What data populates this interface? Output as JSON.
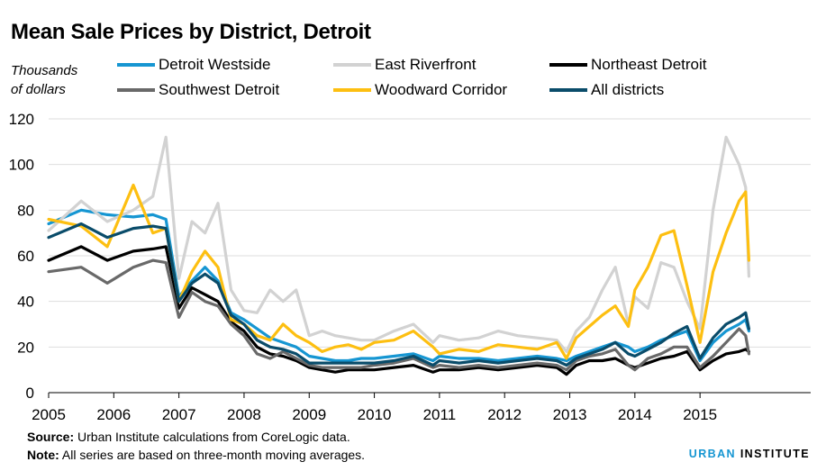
{
  "chart_data": {
    "type": "line",
    "title": "Mean Sale Prices by District, Detroit",
    "ylabel": "Thousands of dollars",
    "xlabel": "",
    "ylim": [
      0,
      120
    ],
    "xlim": [
      2005,
      2015.8
    ],
    "yticks": [
      0,
      20,
      40,
      60,
      80,
      100,
      120
    ],
    "xticks": [
      2005,
      2006,
      2007,
      2008,
      2009,
      2010,
      2011,
      2012,
      2013,
      2014,
      2015
    ],
    "grid": true,
    "legend_position": "top",
    "x": [
      2005.0,
      2005.5,
      2005.9,
      2006.3,
      2006.6,
      2006.8,
      2007.0,
      2007.2,
      2007.4,
      2007.6,
      2007.8,
      2008.0,
      2008.2,
      2008.4,
      2008.6,
      2008.8,
      2009.0,
      2009.2,
      2009.4,
      2009.6,
      2009.8,
      2010.0,
      2010.3,
      2010.6,
      2010.9,
      2011.0,
      2011.3,
      2011.6,
      2011.9,
      2012.2,
      2012.5,
      2012.8,
      2012.95,
      2013.1,
      2013.3,
      2013.5,
      2013.7,
      2013.9,
      2014.0,
      2014.2,
      2014.4,
      2014.6,
      2014.8,
      2015.0,
      2015.2,
      2015.4,
      2015.6,
      2015.7,
      2015.75
    ],
    "series": [
      {
        "name": "Detroit Westside",
        "color": "#1696d2",
        "values": [
          74,
          80,
          78,
          77,
          78,
          76,
          42,
          49,
          55,
          49,
          35,
          32,
          28,
          24,
          22,
          20,
          16,
          15,
          14,
          14,
          15,
          15,
          16,
          17,
          14,
          16,
          15,
          15,
          14,
          15,
          16,
          15,
          14,
          16,
          18,
          20,
          22,
          20,
          18,
          20,
          23,
          25,
          27,
          14,
          22,
          27,
          30,
          32,
          27
        ]
      },
      {
        "name": "East Riverfront",
        "color": "#d2d2d2",
        "values": [
          71,
          84,
          75,
          80,
          86,
          112,
          50,
          75,
          70,
          83,
          45,
          36,
          35,
          45,
          40,
          45,
          25,
          27,
          25,
          24,
          23,
          23,
          27,
          30,
          22,
          25,
          23,
          24,
          27,
          25,
          24,
          23,
          18,
          27,
          33,
          45,
          55,
          30,
          42,
          37,
          57,
          55,
          40,
          28,
          80,
          112,
          100,
          90,
          51
        ]
      },
      {
        "name": "Northeast Detroit",
        "color": "#000000",
        "values": [
          58,
          64,
          58,
          62,
          63,
          64,
          37,
          46,
          43,
          40,
          31,
          27,
          20,
          17,
          16,
          14,
          11,
          10,
          9,
          10,
          10,
          10,
          11,
          12,
          9,
          10,
          10,
          11,
          10,
          11,
          12,
          11,
          8,
          12,
          14,
          14,
          15,
          12,
          11,
          13,
          15,
          16,
          18,
          10,
          14,
          17,
          18,
          19,
          18
        ]
      },
      {
        "name": "Southwest Detroit",
        "color": "#696969",
        "values": [
          53,
          55,
          48,
          55,
          58,
          57,
          33,
          44,
          40,
          38,
          30,
          25,
          17,
          15,
          18,
          15,
          12,
          11,
          11,
          11,
          11,
          12,
          13,
          15,
          11,
          12,
          11,
          12,
          11,
          12,
          13,
          12,
          10,
          14,
          16,
          17,
          19,
          12,
          10,
          15,
          17,
          20,
          20,
          11,
          16,
          22,
          28,
          25,
          17
        ]
      },
      {
        "name": "Woodward Corridor",
        "color": "#fdbf11",
        "values": [
          76,
          73,
          64,
          91,
          70,
          72,
          40,
          53,
          62,
          55,
          32,
          30,
          25,
          23,
          30,
          25,
          22,
          18,
          20,
          21,
          19,
          22,
          23,
          27,
          20,
          17,
          19,
          18,
          21,
          20,
          19,
          22,
          15,
          24,
          29,
          34,
          38,
          29,
          45,
          55,
          69,
          71,
          47,
          22,
          53,
          70,
          84,
          88,
          58
        ]
      },
      {
        "name": "All districts",
        "color": "#0a4c6a",
        "values": [
          68,
          74,
          68,
          72,
          73,
          72,
          40,
          48,
          52,
          48,
          34,
          30,
          23,
          20,
          19,
          17,
          13,
          13,
          13,
          13,
          13,
          13,
          14,
          16,
          12,
          14,
          13,
          14,
          13,
          14,
          15,
          14,
          12,
          15,
          17,
          19,
          22,
          17,
          16,
          19,
          22,
          26,
          29,
          15,
          24,
          30,
          33,
          35,
          28
        ]
      }
    ]
  },
  "units_line1": "Thousands",
  "units_line2": "of dollars",
  "footer": {
    "source_label": "Source:",
    "source_text": " Urban Institute calculations from CoreLogic data.",
    "note_label": "Note:",
    "note_text": " All series are based on three-month moving averages."
  },
  "brand": {
    "part1": "URBAN",
    "part2": "INSTITUTE"
  }
}
